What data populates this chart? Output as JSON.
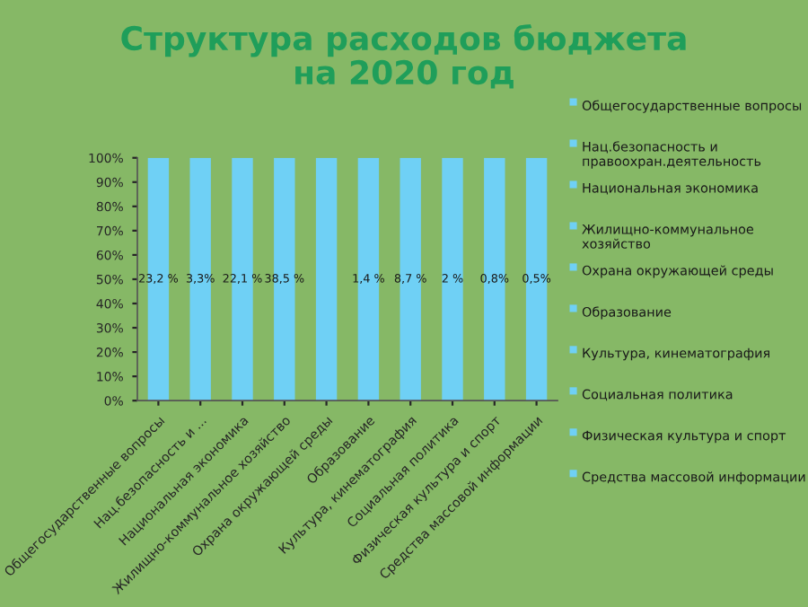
{
  "chart_data": {
    "type": "bar",
    "stacked": true,
    "title": "Структура расходов бюджета\nна 2020 год",
    "categories": [
      "Общегосударственные вопросы",
      "Нац.безопасность и ...",
      "Национальная экономика",
      "Жилищно-коммунальное хозяйство",
      "Охрана окружающей среды",
      "Образование",
      "Культура, кинематография",
      "Социальная политика",
      "Физическая культура и спорт",
      "Средства массовой информации"
    ],
    "series": [
      {
        "name": "Общегосударственные вопросы",
        "color": "#6fd0f5",
        "values": [
          100,
          null,
          null,
          null,
          null,
          null,
          null,
          null,
          null,
          null
        ]
      },
      {
        "name": "Нац.безопасность и правоохран.деятельность",
        "color": "#6fd0f5",
        "values": [
          null,
          100,
          null,
          null,
          null,
          null,
          null,
          null,
          null,
          null
        ]
      },
      {
        "name": "Национальная экономика",
        "color": "#6fd0f5",
        "values": [
          null,
          null,
          100,
          null,
          null,
          null,
          null,
          null,
          null,
          null
        ]
      },
      {
        "name": "Жилищно-коммунальное хозяйство",
        "color": "#6fd0f5",
        "values": [
          null,
          null,
          null,
          100,
          null,
          null,
          null,
          null,
          null,
          null
        ]
      },
      {
        "name": "Охрана окружающей среды",
        "color": "#6fd0f5",
        "values": [
          null,
          null,
          null,
          null,
          100,
          null,
          null,
          null,
          null,
          null
        ]
      },
      {
        "name": "Образование",
        "color": "#6fd0f5",
        "values": [
          null,
          null,
          null,
          null,
          null,
          100,
          null,
          null,
          null,
          null
        ]
      },
      {
        "name": "Культура, кинематография",
        "color": "#6fd0f5",
        "values": [
          null,
          null,
          null,
          null,
          null,
          null,
          100,
          null,
          null,
          null
        ]
      },
      {
        "name": "Социальная политика",
        "color": "#6fd0f5",
        "values": [
          null,
          null,
          null,
          null,
          null,
          null,
          null,
          100,
          null,
          null
        ]
      },
      {
        "name": "Физическая культура и спорт",
        "color": "#6fd0f5",
        "values": [
          null,
          null,
          null,
          null,
          null,
          null,
          null,
          null,
          100,
          null
        ]
      },
      {
        "name": "Средства массовой информации",
        "color": "#6fd0f5",
        "values": [
          null,
          null,
          null,
          null,
          null,
          null,
          null,
          null,
          null,
          100
        ]
      }
    ],
    "annotations": [
      "23,2 %",
      "3,3%",
      "22,1 %",
      "38,5 %",
      null,
      "1,4 %",
      "8,7 %",
      "2 %",
      "0,8%",
      "0,5%"
    ],
    "ylim": [
      0,
      100
    ],
    "yticks": [
      {
        "value": 0,
        "label": "0%"
      },
      {
        "value": 10,
        "label": "10%"
      },
      {
        "value": 20,
        "label": "20%"
      },
      {
        "value": 30,
        "label": "30%"
      },
      {
        "value": 40,
        "label": "40%"
      },
      {
        "value": 50,
        "label": "50%"
      },
      {
        "value": 60,
        "label": "60%"
      },
      {
        "value": 70,
        "label": "70%"
      },
      {
        "value": 80,
        "label": "80%"
      },
      {
        "value": 90,
        "label": "90%"
      },
      {
        "value": 100,
        "label": "100%"
      }
    ],
    "legend": "right",
    "grid": false
  }
}
